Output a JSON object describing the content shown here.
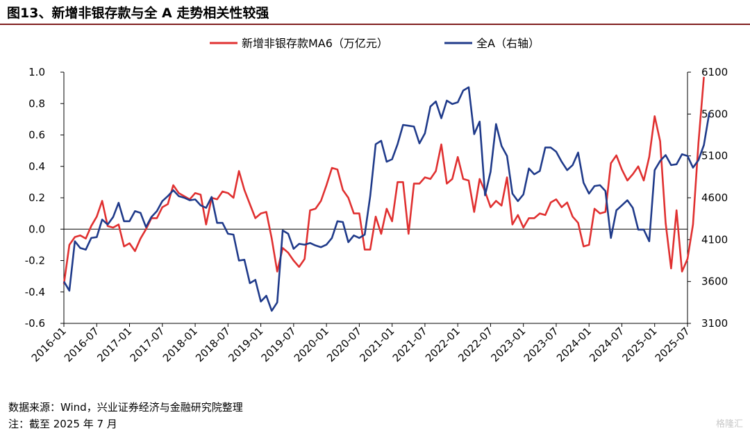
{
  "header": {
    "title": "图13、新增非银存款与全 A 走势相关性较强"
  },
  "footer": {
    "source": "数据来源：Wind，兴业证券经济与金融研究院整理",
    "note": "注：截至 2025 年 7 月",
    "watermark": "格隆汇"
  },
  "chart_data": {
    "type": "line",
    "title": "",
    "x_ticks": [
      "2016-01",
      "2016-07",
      "2017-01",
      "2017-07",
      "2018-01",
      "2018-07",
      "2019-01",
      "2019-07",
      "2020-01",
      "2020-07",
      "2021-01",
      "2021-07",
      "2022-01",
      "2022-07",
      "2023-01",
      "2023-07",
      "2024-01",
      "2024-07",
      "2025-01",
      "2025-07"
    ],
    "x_start": "2016-01",
    "y_left": {
      "ticks": [
        "1.0",
        "0.8",
        "0.6",
        "0.4",
        "0.2",
        "0.0",
        "-0.2",
        "-0.4",
        "-0.6"
      ],
      "range": [
        -0.6,
        1.0
      ]
    },
    "y_right": {
      "ticks": [
        "6100",
        "5600",
        "5100",
        "4600",
        "4100",
        "3600",
        "3100"
      ],
      "range": [
        3100,
        6100
      ]
    },
    "legend_position": "top",
    "colors": {
      "red": "#e03030",
      "blue": "#1f3a8a"
    },
    "series": [
      {
        "name": "新增非银存款MA6（万亿元）",
        "axis": "left",
        "color": "#e03030",
        "values": [
          -0.35,
          -0.1,
          -0.05,
          -0.04,
          -0.06,
          0.02,
          0.08,
          0.18,
          0.02,
          0.01,
          0.03,
          -0.11,
          -0.09,
          -0.14,
          -0.06,
          0.0,
          0.07,
          0.07,
          0.14,
          0.16,
          0.28,
          0.23,
          0.21,
          0.19,
          0.23,
          0.22,
          0.03,
          0.2,
          0.19,
          0.24,
          0.23,
          0.2,
          0.37,
          0.25,
          0.16,
          0.07,
          0.1,
          0.11,
          -0.06,
          -0.27,
          -0.12,
          -0.15,
          -0.2,
          -0.24,
          -0.19,
          0.12,
          0.13,
          0.18,
          0.28,
          0.39,
          0.38,
          0.25,
          0.2,
          0.1,
          0.1,
          -0.13,
          -0.13,
          0.08,
          -0.03,
          0.13,
          0.05,
          0.3,
          0.3,
          -0.03,
          0.29,
          0.29,
          0.33,
          0.32,
          0.37,
          0.54,
          0.29,
          0.32,
          0.46,
          0.32,
          0.31,
          0.11,
          0.32,
          0.24,
          0.14,
          0.18,
          0.15,
          0.33,
          0.03,
          0.09,
          0.01,
          0.07,
          0.07,
          0.1,
          0.09,
          0.17,
          0.19,
          0.14,
          0.17,
          0.08,
          0.04,
          -0.11,
          -0.1,
          0.13,
          0.1,
          0.11,
          0.42,
          0.47,
          0.38,
          0.31,
          0.35,
          0.4,
          0.31,
          0.46,
          0.72,
          0.56,
          0.04,
          -0.25,
          0.12,
          -0.27,
          -0.19,
          0.03,
          0.55,
          0.97
        ]
      },
      {
        "name": "全A（右轴）",
        "axis": "right",
        "color": "#1f3a8a",
        "values": [
          3600,
          3490,
          4080,
          4000,
          3980,
          4120,
          4130,
          4340,
          4280,
          4370,
          4540,
          4320,
          4320,
          4440,
          4420,
          4250,
          4370,
          4440,
          4560,
          4620,
          4690,
          4620,
          4600,
          4570,
          4580,
          4510,
          4480,
          4610,
          4300,
          4300,
          4170,
          4160,
          3850,
          3860,
          3580,
          3620,
          3360,
          3430,
          3250,
          3350,
          4210,
          4170,
          3990,
          4050,
          4040,
          4060,
          4030,
          4010,
          4040,
          4120,
          4320,
          4310,
          4070,
          4150,
          4120,
          4160,
          4620,
          5240,
          5280,
          5030,
          5060,
          5240,
          5470,
          5460,
          5450,
          5250,
          5370,
          5690,
          5750,
          5550,
          5760,
          5720,
          5740,
          5880,
          5920,
          5360,
          5510,
          4630,
          4910,
          5480,
          5220,
          5100,
          4650,
          4560,
          4640,
          4950,
          4880,
          4920,
          5200,
          5200,
          5150,
          5030,
          4930,
          4990,
          5140,
          4780,
          4650,
          4740,
          4750,
          4680,
          4120,
          4450,
          4510,
          4570,
          4480,
          4220,
          4220,
          4080,
          4930,
          5040,
          5110,
          4990,
          5000,
          5120,
          5100,
          4960,
          5050,
          5230,
          5620
        ]
      }
    ]
  }
}
